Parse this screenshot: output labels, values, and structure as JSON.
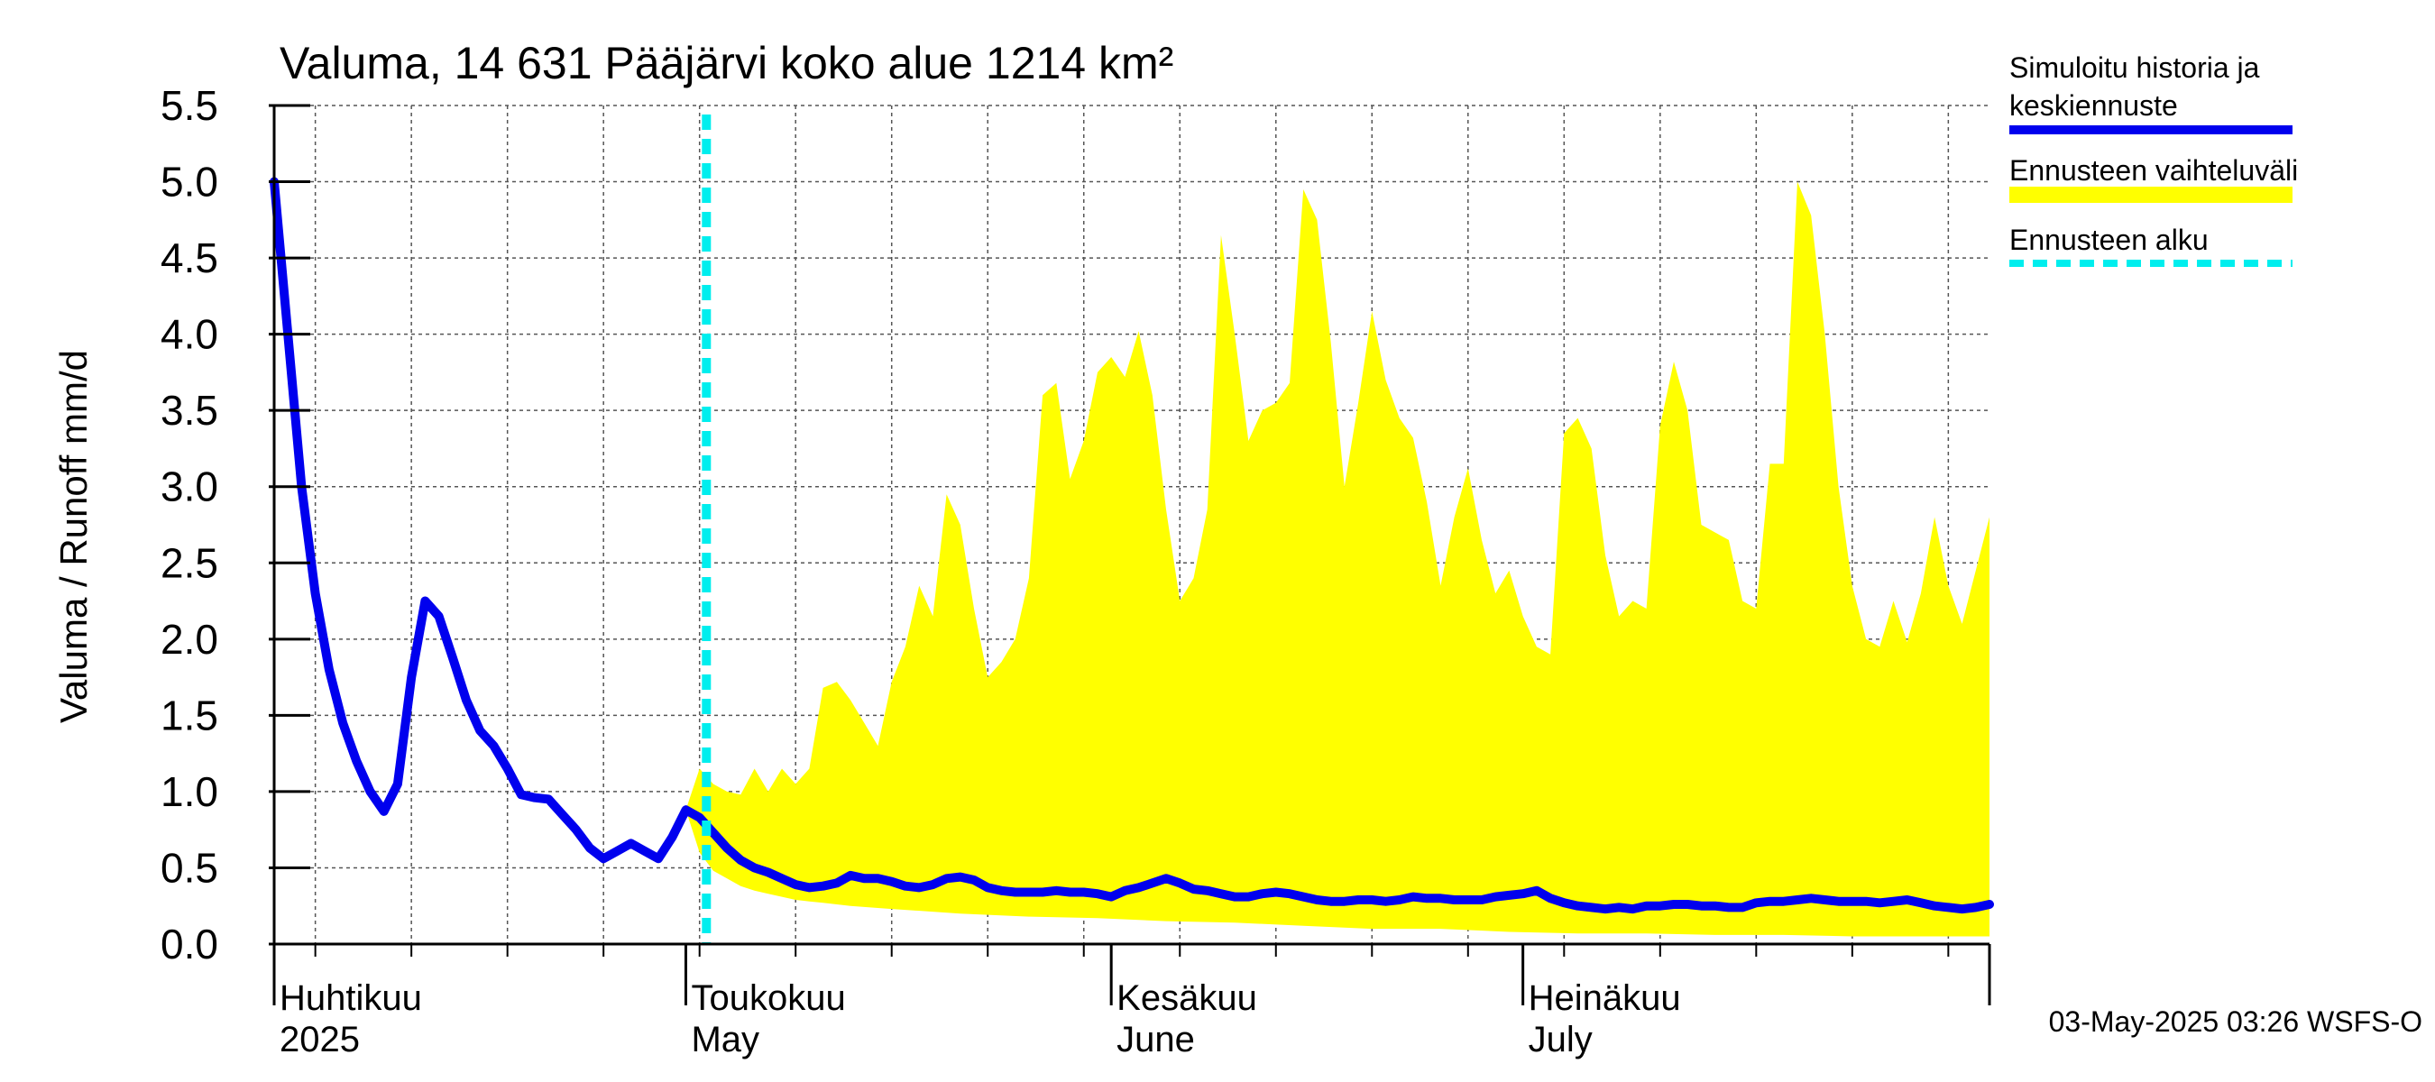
{
  "chart_data": {
    "type": "area",
    "title": "Valuma, 14 631 Pääjärvi koko alue 1214 km²",
    "ylabel": "Valuma / Runoff     mm/d",
    "ylim": [
      0,
      5.5
    ],
    "yticks": [
      "0.0",
      "0.5",
      "1.0",
      "1.5",
      "2.0",
      "2.5",
      "3.0",
      "3.5",
      "4.0",
      "4.5",
      "5.0",
      "5.5"
    ],
    "x_start": "2025-03-31",
    "days": 125,
    "forecast_start_day": 31.5,
    "month_labels": [
      {
        "day": 0,
        "fi": "Huhtikuu",
        "en": "2025"
      },
      {
        "day": 30,
        "fi": "Toukokuu",
        "en": "May"
      },
      {
        "day": 61,
        "fi": "Kesäkuu",
        "en": "June"
      },
      {
        "day": 91,
        "fi": "Heinäkuu",
        "en": "July"
      }
    ],
    "month_boundaries": [
      30,
      61,
      91
    ],
    "legend": [
      {
        "label_line1": "Simuloitu historia ja",
        "label_line2": "keskiennuste",
        "color": "#0000ee",
        "style": "solid"
      },
      {
        "label_line1": "Ennusteen vaihteluväli",
        "label_line2": "",
        "color": "#ffff00",
        "style": "band"
      },
      {
        "label_line1": "Ennusteen alku",
        "label_line2": "",
        "color": "#00eeee",
        "style": "dashed"
      }
    ],
    "footer": "03-May-2025 03:26 WSFS-O",
    "series": [
      {
        "name": "Simuloitu historia ja keskiennuste",
        "color": "#0000ee",
        "points": [
          [
            0,
            5.0
          ],
          [
            1,
            4.0
          ],
          [
            2,
            3.0
          ],
          [
            3,
            2.3
          ],
          [
            4,
            1.8
          ],
          [
            5,
            1.45
          ],
          [
            6,
            1.2
          ],
          [
            7,
            1.0
          ],
          [
            8,
            0.87
          ],
          [
            9,
            1.05
          ],
          [
            10,
            1.75
          ],
          [
            11,
            2.25
          ],
          [
            12,
            2.15
          ],
          [
            13,
            1.88
          ],
          [
            14,
            1.6
          ],
          [
            15,
            1.4
          ],
          [
            16,
            1.3
          ],
          [
            17,
            1.15
          ],
          [
            18,
            0.98
          ],
          [
            19,
            0.96
          ],
          [
            20,
            0.95
          ],
          [
            21,
            0.85
          ],
          [
            22,
            0.75
          ],
          [
            23,
            0.63
          ],
          [
            24,
            0.56
          ],
          [
            25,
            0.61
          ],
          [
            26,
            0.66
          ],
          [
            27,
            0.61
          ],
          [
            28,
            0.56
          ],
          [
            29,
            0.7
          ],
          [
            30,
            0.88
          ],
          [
            31,
            0.83
          ],
          [
            32,
            0.73
          ],
          [
            33,
            0.63
          ],
          [
            34,
            0.55
          ],
          [
            35,
            0.5
          ],
          [
            36,
            0.47
          ],
          [
            37,
            0.43
          ],
          [
            38,
            0.39
          ],
          [
            39,
            0.37
          ],
          [
            40,
            0.38
          ],
          [
            41,
            0.4
          ],
          [
            42,
            0.45
          ],
          [
            43,
            0.43
          ],
          [
            44,
            0.43
          ],
          [
            45,
            0.41
          ],
          [
            46,
            0.38
          ],
          [
            47,
            0.37
          ],
          [
            48,
            0.39
          ],
          [
            49,
            0.43
          ],
          [
            50,
            0.44
          ],
          [
            51,
            0.42
          ],
          [
            52,
            0.37
          ],
          [
            53,
            0.35
          ],
          [
            54,
            0.34
          ],
          [
            55,
            0.34
          ],
          [
            56,
            0.34
          ],
          [
            57,
            0.35
          ],
          [
            58,
            0.34
          ],
          [
            59,
            0.34
          ],
          [
            60,
            0.33
          ],
          [
            61,
            0.31
          ],
          [
            62,
            0.35
          ],
          [
            63,
            0.37
          ],
          [
            64,
            0.4
          ],
          [
            65,
            0.43
          ],
          [
            66,
            0.4
          ],
          [
            67,
            0.36
          ],
          [
            68,
            0.35
          ],
          [
            69,
            0.33
          ],
          [
            70,
            0.31
          ],
          [
            71,
            0.31
          ],
          [
            72,
            0.33
          ],
          [
            73,
            0.34
          ],
          [
            74,
            0.33
          ],
          [
            75,
            0.31
          ],
          [
            76,
            0.29
          ],
          [
            77,
            0.28
          ],
          [
            78,
            0.28
          ],
          [
            79,
            0.29
          ],
          [
            80,
            0.29
          ],
          [
            81,
            0.28
          ],
          [
            82,
            0.29
          ],
          [
            83,
            0.31
          ],
          [
            84,
            0.3
          ],
          [
            85,
            0.3
          ],
          [
            86,
            0.29
          ],
          [
            87,
            0.29
          ],
          [
            88,
            0.29
          ],
          [
            89,
            0.31
          ],
          [
            90,
            0.32
          ],
          [
            91,
            0.33
          ],
          [
            92,
            0.35
          ],
          [
            93,
            0.3
          ],
          [
            94,
            0.27
          ],
          [
            95,
            0.25
          ],
          [
            96,
            0.24
          ],
          [
            97,
            0.23
          ],
          [
            98,
            0.24
          ],
          [
            99,
            0.23
          ],
          [
            100,
            0.25
          ],
          [
            101,
            0.25
          ],
          [
            102,
            0.26
          ],
          [
            103,
            0.26
          ],
          [
            104,
            0.25
          ],
          [
            105,
            0.25
          ],
          [
            106,
            0.24
          ],
          [
            107,
            0.24
          ],
          [
            108,
            0.27
          ],
          [
            109,
            0.28
          ],
          [
            110,
            0.28
          ],
          [
            111,
            0.29
          ],
          [
            112,
            0.3
          ],
          [
            113,
            0.29
          ],
          [
            114,
            0.28
          ],
          [
            115,
            0.28
          ],
          [
            116,
            0.28
          ],
          [
            117,
            0.27
          ],
          [
            118,
            0.28
          ],
          [
            119,
            0.29
          ],
          [
            120,
            0.27
          ],
          [
            121,
            0.25
          ],
          [
            122,
            0.24
          ],
          [
            123,
            0.23
          ],
          [
            124,
            0.24
          ],
          [
            125,
            0.26
          ]
        ]
      },
      {
        "name": "Ennusteen vaihteluväli (ylä)",
        "color": "#ffff00",
        "points": [
          [
            30,
            0.88
          ],
          [
            31,
            1.15
          ],
          [
            32,
            1.05
          ],
          [
            33,
            1.0
          ],
          [
            34,
            0.98
          ],
          [
            35,
            1.15
          ],
          [
            36,
            1.0
          ],
          [
            37,
            1.15
          ],
          [
            38,
            1.05
          ],
          [
            39,
            1.15
          ],
          [
            40,
            1.68
          ],
          [
            41,
            1.72
          ],
          [
            42,
            1.6
          ],
          [
            43,
            1.45
          ],
          [
            44,
            1.3
          ],
          [
            45,
            1.72
          ],
          [
            46,
            1.95
          ],
          [
            47,
            2.35
          ],
          [
            48,
            2.15
          ],
          [
            49,
            2.95
          ],
          [
            50,
            2.75
          ],
          [
            51,
            2.2
          ],
          [
            52,
            1.75
          ],
          [
            53,
            1.85
          ],
          [
            54,
            2.0
          ],
          [
            55,
            2.4
          ],
          [
            56,
            3.6
          ],
          [
            57,
            3.68
          ],
          [
            58,
            3.05
          ],
          [
            59,
            3.3
          ],
          [
            60,
            3.75
          ],
          [
            61,
            3.85
          ],
          [
            62,
            3.72
          ],
          [
            63,
            4.02
          ],
          [
            64,
            3.6
          ],
          [
            65,
            2.85
          ],
          [
            66,
            2.25
          ],
          [
            67,
            2.4
          ],
          [
            68,
            2.85
          ],
          [
            69,
            4.65
          ],
          [
            70,
            4.0
          ],
          [
            71,
            3.3
          ],
          [
            72,
            3.5
          ],
          [
            73,
            3.55
          ],
          [
            74,
            3.68
          ],
          [
            75,
            4.95
          ],
          [
            76,
            4.75
          ],
          [
            77,
            3.95
          ],
          [
            78,
            3.0
          ],
          [
            79,
            3.55
          ],
          [
            80,
            4.15
          ],
          [
            81,
            3.7
          ],
          [
            82,
            3.45
          ],
          [
            83,
            3.32
          ],
          [
            84,
            2.9
          ],
          [
            85,
            2.35
          ],
          [
            86,
            2.8
          ],
          [
            87,
            3.12
          ],
          [
            88,
            2.65
          ],
          [
            89,
            2.3
          ],
          [
            90,
            2.45
          ],
          [
            91,
            2.15
          ],
          [
            92,
            1.95
          ],
          [
            93,
            1.9
          ],
          [
            94,
            3.35
          ],
          [
            95,
            3.45
          ],
          [
            96,
            3.25
          ],
          [
            97,
            2.55
          ],
          [
            98,
            2.15
          ],
          [
            99,
            2.25
          ],
          [
            100,
            2.2
          ],
          [
            101,
            3.4
          ],
          [
            102,
            3.82
          ],
          [
            103,
            3.5
          ],
          [
            104,
            2.75
          ],
          [
            105,
            2.7
          ],
          [
            106,
            2.65
          ],
          [
            107,
            2.25
          ],
          [
            108,
            2.2
          ],
          [
            109,
            3.15
          ],
          [
            110,
            3.15
          ],
          [
            111,
            5.0
          ],
          [
            112,
            4.78
          ],
          [
            113,
            4.0
          ],
          [
            114,
            3.0
          ],
          [
            115,
            2.35
          ],
          [
            116,
            2.0
          ],
          [
            117,
            1.95
          ],
          [
            118,
            2.25
          ],
          [
            119,
            1.98
          ],
          [
            120,
            2.3
          ],
          [
            121,
            2.8
          ],
          [
            122,
            2.35
          ],
          [
            123,
            2.1
          ],
          [
            124,
            2.45
          ],
          [
            125,
            2.8
          ]
        ]
      },
      {
        "name": "Ennusteen vaihteluväli (ala)",
        "color": "#ffff00",
        "points": [
          [
            30,
            0.88
          ],
          [
            31,
            0.6
          ],
          [
            32,
            0.48
          ],
          [
            33,
            0.43
          ],
          [
            34,
            0.38
          ],
          [
            35,
            0.35
          ],
          [
            36,
            0.33
          ],
          [
            37,
            0.31
          ],
          [
            38,
            0.29
          ],
          [
            39,
            0.28
          ],
          [
            40,
            0.27
          ],
          [
            42,
            0.25
          ],
          [
            45,
            0.23
          ],
          [
            50,
            0.2
          ],
          [
            55,
            0.18
          ],
          [
            60,
            0.17
          ],
          [
            65,
            0.15
          ],
          [
            70,
            0.14
          ],
          [
            75,
            0.12
          ],
          [
            80,
            0.1
          ],
          [
            85,
            0.1
          ],
          [
            90,
            0.08
          ],
          [
            95,
            0.07
          ],
          [
            100,
            0.07
          ],
          [
            105,
            0.06
          ],
          [
            110,
            0.06
          ],
          [
            115,
            0.05
          ],
          [
            120,
            0.05
          ],
          [
            125,
            0.05
          ]
        ]
      }
    ]
  }
}
